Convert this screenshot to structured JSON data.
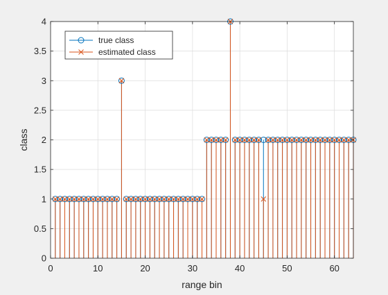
{
  "chart_data": {
    "type": "stem",
    "xlabel": "range bin",
    "ylabel": "class",
    "xlim": [
      0,
      64
    ],
    "ylim": [
      0,
      4
    ],
    "xticks": [
      0,
      10,
      20,
      30,
      40,
      50,
      60
    ],
    "yticks": [
      0,
      0.5,
      1,
      1.5,
      2,
      2.5,
      3,
      3.5,
      4
    ],
    "xtick_labels": [
      "0",
      "10",
      "20",
      "30",
      "40",
      "50",
      "60"
    ],
    "ytick_labels": [
      "0",
      "0.5",
      "1",
      "1.5",
      "2",
      "2.5",
      "3",
      "3.5",
      "4"
    ],
    "grid": true,
    "legend_position": "top-left",
    "x": [
      1,
      2,
      3,
      4,
      5,
      6,
      7,
      8,
      9,
      10,
      11,
      12,
      13,
      14,
      15,
      16,
      17,
      18,
      19,
      20,
      21,
      22,
      23,
      24,
      25,
      26,
      27,
      28,
      29,
      30,
      31,
      32,
      33,
      34,
      35,
      36,
      37,
      38,
      39,
      40,
      41,
      42,
      43,
      44,
      45,
      46,
      47,
      48,
      49,
      50,
      51,
      52,
      53,
      54,
      55,
      56,
      57,
      58,
      59,
      60,
      61,
      62,
      63,
      64
    ],
    "series": [
      {
        "name": "true class",
        "marker": "circle",
        "color": "#0072BD",
        "values": [
          1,
          1,
          1,
          1,
          1,
          1,
          1,
          1,
          1,
          1,
          1,
          1,
          1,
          1,
          3,
          1,
          1,
          1,
          1,
          1,
          1,
          1,
          1,
          1,
          1,
          1,
          1,
          1,
          1,
          1,
          1,
          1,
          2,
          2,
          2,
          2,
          2,
          4,
          2,
          2,
          2,
          2,
          2,
          2,
          2,
          2,
          2,
          2,
          2,
          2,
          2,
          2,
          2,
          2,
          2,
          2,
          2,
          2,
          2,
          2,
          2,
          2,
          2,
          2
        ]
      },
      {
        "name": "estimated class",
        "marker": "x",
        "color": "#D95319",
        "values": [
          1,
          1,
          1,
          1,
          1,
          1,
          1,
          1,
          1,
          1,
          1,
          1,
          1,
          1,
          3,
          1,
          1,
          1,
          1,
          1,
          1,
          1,
          1,
          1,
          1,
          1,
          1,
          1,
          1,
          1,
          1,
          1,
          2,
          2,
          2,
          2,
          2,
          4,
          2,
          2,
          2,
          2,
          2,
          2,
          1,
          2,
          2,
          2,
          2,
          2,
          2,
          2,
          2,
          2,
          2,
          2,
          2,
          2,
          2,
          2,
          2,
          2,
          2,
          2
        ]
      }
    ]
  }
}
